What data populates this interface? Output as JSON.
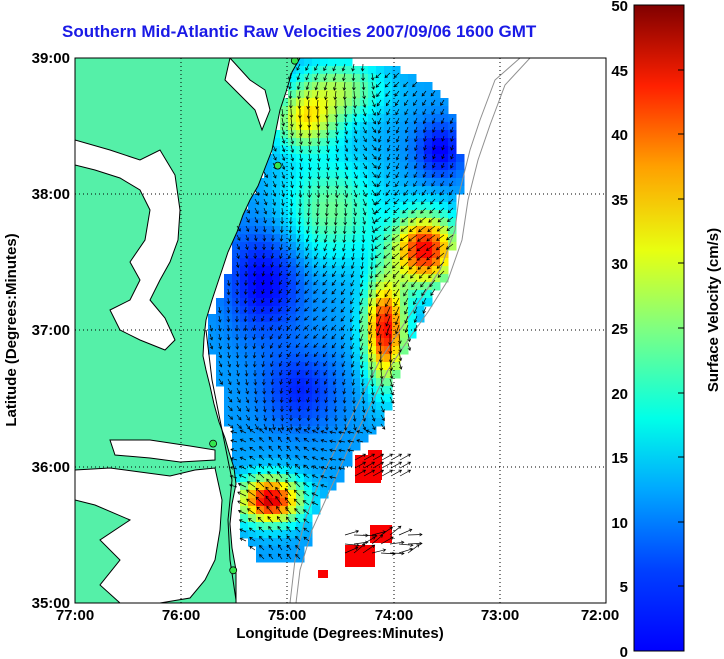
{
  "title": "Southern Mid-Atlantic Raw Velocities 2007/09/06 1600 GMT",
  "x_axis": {
    "label": "Longitude (Degrees:Minutes)",
    "ticks": [
      "77:00",
      "76:00",
      "75:00",
      "74:00",
      "73:00",
      "72:00"
    ]
  },
  "y_axis": {
    "label": "Latitude (Degrees:Minutes)",
    "ticks": [
      "39:00",
      "38:00",
      "37:00",
      "36:00",
      "35:00"
    ]
  },
  "colorbar": {
    "label": "Surface Velocity (cm/s)",
    "ticks": [
      "50",
      "45",
      "40",
      "35",
      "30",
      "25",
      "20",
      "15",
      "10",
      "5",
      "0"
    ],
    "colormap": "jet",
    "range": [
      0,
      50
    ]
  },
  "colors": {
    "land": "#55f0a8",
    "title": "#1a1ae6",
    "station": "#33e64d",
    "vector": "#000000"
  },
  "map": {
    "lon_range": [
      -77,
      -72
    ],
    "lat_range": [
      35,
      39
    ],
    "grid": "dotted",
    "stations": [
      {
        "lon": -74.93,
        "lat": 38.98
      },
      {
        "lon": -75.09,
        "lat": 38.21
      },
      {
        "lon": -75.7,
        "lat": 36.17
      },
      {
        "lon": -75.51,
        "lat": 35.24
      }
    ]
  }
}
